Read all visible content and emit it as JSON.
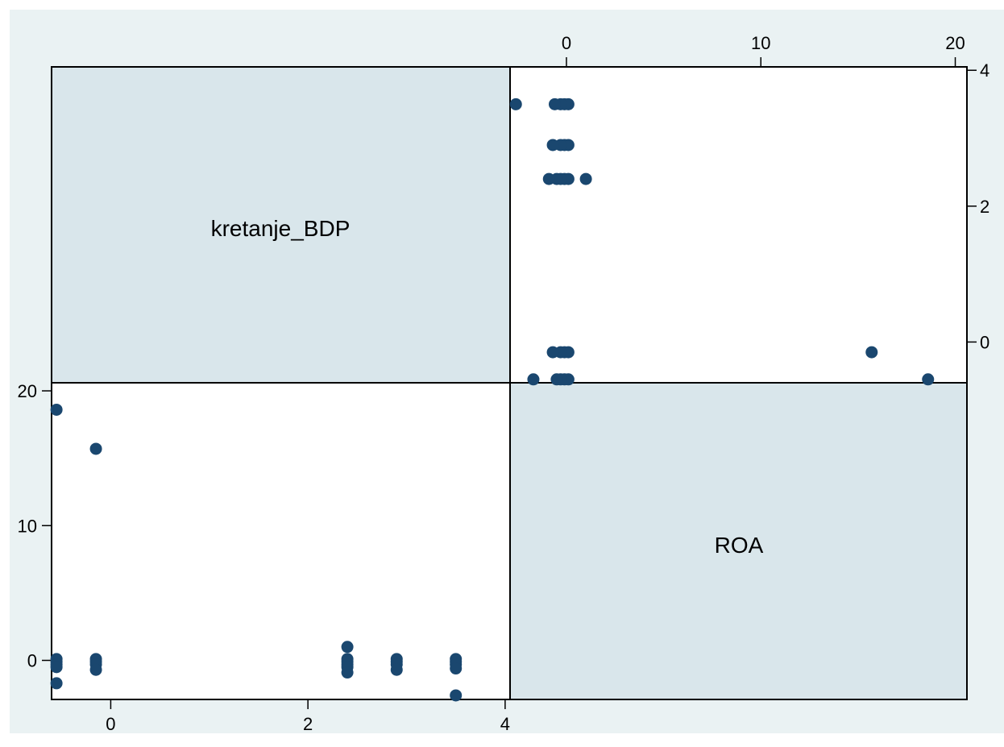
{
  "chart_data": {
    "type": "scatter",
    "variables": [
      "kretanje_BDP",
      "ROA"
    ],
    "colors": {
      "plot_region": "#eaf2f3",
      "diagonal_cell": "#d9e6eb",
      "cell_background": "#ffffff",
      "marker": "#1a476f",
      "frame": "#000000"
    },
    "axes": {
      "kretanje_BDP": {
        "range": [
          -0.6,
          4.05
        ],
        "ticks": [
          0,
          2,
          4
        ],
        "tick_labels": [
          "0",
          "2",
          "4"
        ]
      },
      "ROA": {
        "range": [
          -2.9,
          20.6
        ],
        "ticks": [
          0,
          10,
          20
        ],
        "tick_labels": [
          "0",
          "10",
          "20"
        ]
      }
    },
    "tick_placement": {
      "kretanje_BDP_x": "bottom",
      "ROA_y": "left",
      "ROA_x": "top",
      "kretanje_BDP_y": "right"
    },
    "grid": false,
    "points": [
      {
        "kretanje_BDP": -0.55,
        "ROA": 18.6
      },
      {
        "kretanje_BDP": -0.55,
        "ROA": 0.1
      },
      {
        "kretanje_BDP": -0.55,
        "ROA": -0.1
      },
      {
        "kretanje_BDP": -0.55,
        "ROA": -0.3
      },
      {
        "kretanje_BDP": -0.55,
        "ROA": -0.5
      },
      {
        "kretanje_BDP": -0.55,
        "ROA": -1.7
      },
      {
        "kretanje_BDP": -0.15,
        "ROA": 15.7
      },
      {
        "kretanje_BDP": -0.15,
        "ROA": 0.1
      },
      {
        "kretanje_BDP": -0.15,
        "ROA": -0.1
      },
      {
        "kretanje_BDP": -0.15,
        "ROA": -0.3
      },
      {
        "kretanje_BDP": -0.15,
        "ROA": -0.7
      },
      {
        "kretanje_BDP": 2.4,
        "ROA": 1.0
      },
      {
        "kretanje_BDP": 2.4,
        "ROA": 0.1
      },
      {
        "kretanje_BDP": 2.4,
        "ROA": -0.1
      },
      {
        "kretanje_BDP": 2.4,
        "ROA": -0.3
      },
      {
        "kretanje_BDP": 2.4,
        "ROA": -0.5
      },
      {
        "kretanje_BDP": 2.4,
        "ROA": -0.9
      },
      {
        "kretanje_BDP": 2.9,
        "ROA": 0.1
      },
      {
        "kretanje_BDP": 2.9,
        "ROA": -0.1
      },
      {
        "kretanje_BDP": 2.9,
        "ROA": -0.3
      },
      {
        "kretanje_BDP": 2.9,
        "ROA": -0.7
      },
      {
        "kretanje_BDP": 3.5,
        "ROA": 0.1
      },
      {
        "kretanje_BDP": 3.5,
        "ROA": -0.1
      },
      {
        "kretanje_BDP": 3.5,
        "ROA": -0.3
      },
      {
        "kretanje_BDP": 3.5,
        "ROA": -0.6
      },
      {
        "kretanje_BDP": 3.5,
        "ROA": -2.6
      }
    ]
  }
}
